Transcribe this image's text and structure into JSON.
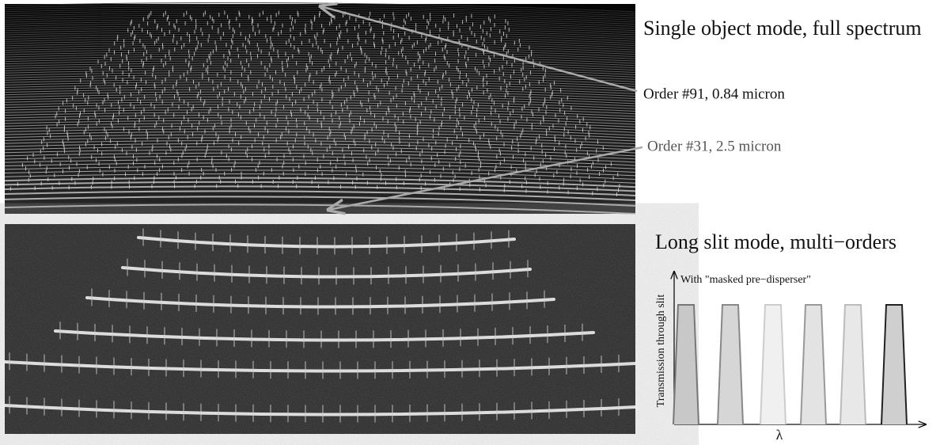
{
  "top_panel": {
    "title": "Single object mode, full spectrum",
    "labels": [
      "Order #91, 0.84 micron",
      "Order #31, 2.5 micron"
    ]
  },
  "bottom_panel": {
    "title": "Long slit mode, multi−orders"
  },
  "inset": {
    "note": "With \"masked pre−disperser\"",
    "y_label": "Transmission through slit",
    "x_label": "λ"
  }
}
